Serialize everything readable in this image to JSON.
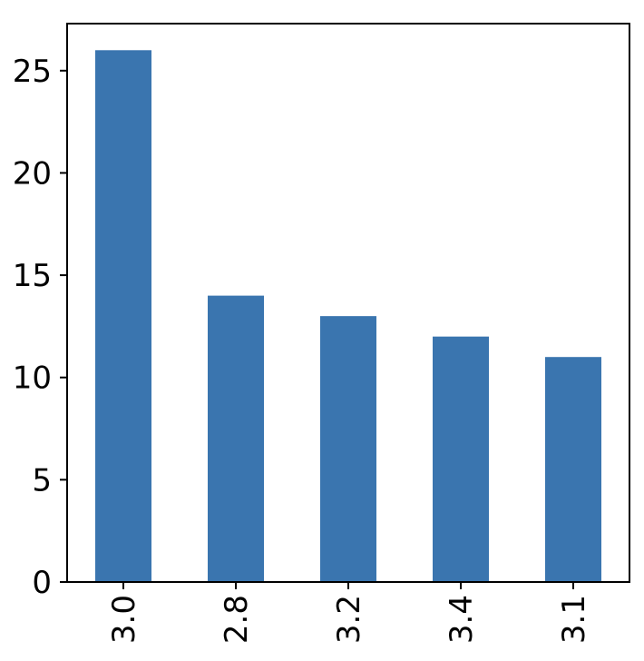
{
  "chart_data": {
    "type": "bar",
    "categories": [
      "3.0",
      "2.8",
      "3.2",
      "3.4",
      "3.1"
    ],
    "values": [
      26,
      14,
      13,
      12,
      11
    ],
    "title": "",
    "xlabel": "",
    "ylabel": "",
    "ylim": [
      0,
      27.3
    ],
    "yticks": [
      "0",
      "5",
      "10",
      "15",
      "20",
      "25"
    ],
    "grid": false,
    "legend": "none",
    "bar_color": "#3a75af"
  }
}
